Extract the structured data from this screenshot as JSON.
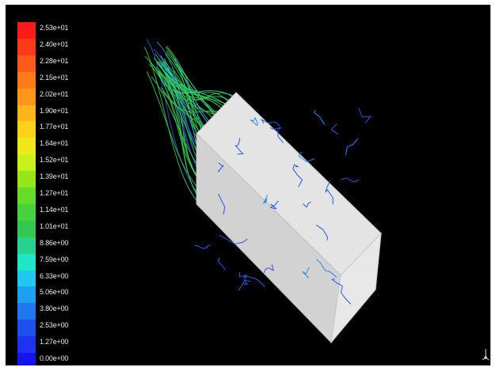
{
  "colormap": {
    "labels": [
      "2.53e+01",
      "2.40e+01",
      "2.28e+01",
      "2.15e+01",
      "2.02e+01",
      "1.90e+01",
      "1.77e+01",
      "1.64e+01",
      "1.52e+01",
      "1.39e+01",
      "1.27e+01",
      "1.14e+01",
      "1.01e+01",
      "8.86e+00",
      "7.59e+00",
      "6.33e+00",
      "5.06e+00",
      "3.80e+00",
      "2.53e+00",
      "1.27e+00",
      "0.00e+00"
    ],
    "colors": [
      "#ff1a1a",
      "#ff3a1a",
      "#ff5a1a",
      "#ff7a1a",
      "#ff961a",
      "#ffb41a",
      "#ffd21a",
      "#f0e81a",
      "#c8f01a",
      "#96e61a",
      "#64dc28",
      "#46d23c",
      "#32c850",
      "#28d28c",
      "#1ee6c8",
      "#1ec8f0",
      "#1ea0f0",
      "#1e78f0",
      "#1e50f0",
      "#1e32f0",
      "#1414f0"
    ]
  },
  "scene": {
    "box_color": "#dcdcdc",
    "pathline_colors": [
      "#3cc850",
      "#2adca0",
      "#1ec8e6",
      "#1e8cf0",
      "#285adc"
    ]
  },
  "icons": {
    "axis_triad": "axis-triad-icon"
  }
}
